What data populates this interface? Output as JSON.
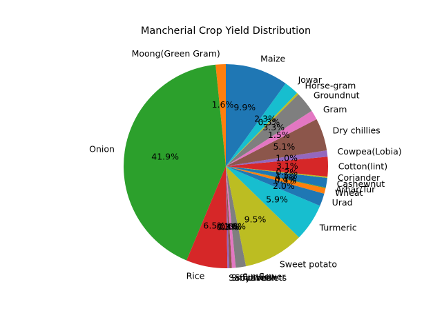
{
  "chart_data": {
    "type": "pie",
    "title": "Mancherial Crop Yield Distribution",
    "start_angle_deg": 90,
    "direction": "counterclockwise",
    "slices": [
      {
        "label": "Moong(Green Gram)",
        "value": 1.6,
        "pct_label": "1.6%",
        "color": "#ff7f0e"
      },
      {
        "label": "Onion",
        "value": 41.9,
        "pct_label": "41.9%",
        "color": "#2ca02c"
      },
      {
        "label": "Rice",
        "value": 6.5,
        "pct_label": "6.5%",
        "color": "#d62728"
      },
      {
        "label": "Safflower",
        "value": 0.3,
        "pct_label": "0.3%",
        "color": "#9467bd"
      },
      {
        "label": "Small millets",
        "value": 0.4,
        "pct_label": "0.4%",
        "color": "#8c564b"
      },
      {
        "label": "Soyabean",
        "value": 0.6,
        "pct_label": "0.6%",
        "color": "#e377c2"
      },
      {
        "label": "Sunflower",
        "value": 1.6,
        "pct_label": "1.6%",
        "color": "#7f7f7f"
      },
      {
        "label": "Sweet potato",
        "value": 9.5,
        "pct_label": "9.5%",
        "color": "#bcbd22"
      },
      {
        "label": "Turmeric",
        "value": 5.9,
        "pct_label": "5.9%",
        "color": "#17becf"
      },
      {
        "label": "Urad",
        "value": 2.0,
        "pct_label": "2.0%",
        "color": "#1f77b4"
      },
      {
        "label": "Wheat",
        "value": 0.9,
        "pct_label": "0.9%",
        "color": "#ff7f0e"
      },
      {
        "label": "Arhar/Tur",
        "value": 0.1,
        "pct_label": "0.1%",
        "color": "#2ca02c"
      },
      {
        "label": "Cashewnut",
        "value": 1.5,
        "pct_label": "1.5%",
        "color": "#1f77b4"
      },
      {
        "label": "Coriander",
        "value": 0.2,
        "pct_label": "0.2%",
        "color": "#bcbd22"
      },
      {
        "label": "Cotton(lint)",
        "value": 3.1,
        "pct_label": "3.1%",
        "color": "#d62728"
      },
      {
        "label": "Cowpea(Lobia)",
        "value": 1.0,
        "pct_label": "1.0%",
        "color": "#9467bd"
      },
      {
        "label": "Dry chillies",
        "value": 5.1,
        "pct_label": "5.1%",
        "color": "#8c564b"
      },
      {
        "label": "Gram",
        "value": 1.5,
        "pct_label": "1.5%",
        "color": "#e377c2"
      },
      {
        "label": "Groundnut",
        "value": 3.3,
        "pct_label": "3.3%",
        "color": "#7f7f7f"
      },
      {
        "label": "Horse-gram",
        "value": 0.3,
        "pct_label": "0.3%",
        "color": "#bcbd22"
      },
      {
        "label": "Jowar",
        "value": 2.3,
        "pct_label": "2.3%",
        "color": "#17becf"
      },
      {
        "label": "Maize",
        "value": 9.9,
        "pct_label": "9.9%",
        "color": "#1f77b4"
      }
    ]
  }
}
